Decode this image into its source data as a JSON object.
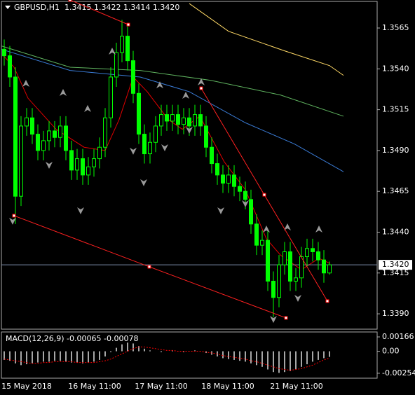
{
  "chart_data": {
    "type": "candlestick",
    "header": "GBPUSD,H1  1.3415 1.3422 1.3414 1.3420",
    "color": "#00ff00",
    "open": [
      1.3552,
      1.3548,
      1.3535,
      1.3462,
      1.3505,
      1.351,
      1.35,
      1.349,
      1.3496,
      1.3502,
      1.3498,
      1.3505,
      1.349,
      1.3478,
      1.3485,
      1.3475,
      1.348,
      1.3485,
      1.3492,
      1.351,
      1.3535,
      1.355,
      1.356,
      1.3545,
      1.3525,
      1.35,
      1.3488,
      1.3495,
      1.3505,
      1.3512,
      1.3508,
      1.3512,
      1.3506,
      1.351,
      1.3505,
      1.3512,
      1.3505,
      1.3492,
      1.3482,
      1.3475,
      1.347,
      1.3475,
      1.3468,
      1.3465,
      1.346,
      1.3445,
      1.3432,
      1.3435,
      1.341,
      1.34,
      1.342,
      1.3428,
      1.341,
      1.3412,
      1.3425,
      1.343,
      1.3428,
      1.3423,
      1.3415
    ],
    "high": [
      1.3558,
      1.3554,
      1.3541,
      1.3511,
      1.3516,
      1.3516,
      1.3506,
      1.3502,
      1.3508,
      1.3508,
      1.3511,
      1.3511,
      1.3496,
      1.3491,
      1.3491,
      1.3486,
      1.3491,
      1.3498,
      1.3516,
      1.3541,
      1.3556,
      1.357,
      1.3566,
      1.3551,
      1.3531,
      1.3506,
      1.3501,
      1.3511,
      1.3518,
      1.3518,
      1.3518,
      1.3518,
      1.3516,
      1.3516,
      1.3518,
      1.3518,
      1.3511,
      1.3498,
      1.3488,
      1.3481,
      1.3481,
      1.3481,
      1.3474,
      1.3471,
      1.3466,
      1.3451,
      1.3441,
      1.3441,
      1.3416,
      1.3426,
      1.3434,
      1.3434,
      1.3418,
      1.3431,
      1.3436,
      1.3436,
      1.3434,
      1.3429,
      1.3422
    ],
    "low": [
      1.3542,
      1.3529,
      1.3445,
      1.3456,
      1.3499,
      1.3494,
      1.3484,
      1.3484,
      1.349,
      1.3492,
      1.3492,
      1.3484,
      1.3472,
      1.3472,
      1.3469,
      1.3469,
      1.3474,
      1.3479,
      1.3486,
      1.3504,
      1.3529,
      1.3544,
      1.3539,
      1.3519,
      1.3494,
      1.3482,
      1.3482,
      1.3489,
      1.3499,
      1.3502,
      1.3502,
      1.35,
      1.35,
      1.3499,
      1.3499,
      1.3499,
      1.3486,
      1.3476,
      1.3469,
      1.3464,
      1.3464,
      1.3462,
      1.3459,
      1.3454,
      1.3439,
      1.3426,
      1.3426,
      1.3404,
      1.3388,
      1.3394,
      1.3414,
      1.3404,
      1.3404,
      1.3406,
      1.3419,
      1.3422,
      1.3417,
      1.3409,
      1.3414
    ],
    "close": [
      1.3548,
      1.3535,
      1.3462,
      1.3505,
      1.351,
      1.35,
      1.349,
      1.3496,
      1.3502,
      1.3498,
      1.3505,
      1.349,
      1.3478,
      1.3485,
      1.3475,
      1.348,
      1.3485,
      1.3492,
      1.351,
      1.3535,
      1.355,
      1.356,
      1.3545,
      1.3525,
      1.35,
      1.3488,
      1.3495,
      1.3505,
      1.3512,
      1.3508,
      1.3512,
      1.3506,
      1.351,
      1.3505,
      1.3512,
      1.3505,
      1.3492,
      1.3482,
      1.3475,
      1.347,
      1.3475,
      1.3468,
      1.3465,
      1.346,
      1.3445,
      1.3432,
      1.3435,
      1.341,
      1.34,
      1.342,
      1.3428,
      1.341,
      1.3412,
      1.3425,
      1.343,
      1.3428,
      1.3423,
      1.3415,
      1.342
    ],
    "ylim": [
      1.33806,
      1.35813
    ],
    "yticks": [
      1.3565,
      {
        "value": 1.354,
        "label": "1.3540"
      },
      1.3515,
      {
        "value": 1.349,
        "label": "1.3490"
      },
      1.3465,
      {
        "value": 1.344,
        "label": "1.3440"
      },
      1.3415,
      {
        "value": 1.339,
        "label": "1.3390"
      }
    ],
    "last_price": {
      "value": 1.342,
      "label": "1.3420"
    },
    "time_labels": [
      "15 May 2018",
      "16 May 11:00",
      "17 May 11:00",
      "18 May 11:00",
      "21 May 11:00"
    ],
    "moving_averages": [
      {
        "color": "#ffd966",
        "bars": [
          33,
          40,
          50,
          58,
          60.5
        ],
        "values": [
          1.358,
          1.3563,
          1.3551,
          1.3542,
          1.3536
        ]
      },
      {
        "color": "#5fb35f",
        "bars": [
          -0.5,
          11.75,
          24.25,
          36.75,
          49.25,
          60.5
        ],
        "values": [
          1.3554,
          1.3541,
          1.3539,
          1.3533,
          1.3524,
          1.3511
        ]
      },
      {
        "color": "#3a7bd5",
        "bars": [
          -0.5,
          11.75,
          24.25,
          33,
          43,
          51.75,
          60.5
        ],
        "values": [
          1.3552,
          1.3539,
          1.3535,
          1.3526,
          1.3507,
          1.3494,
          1.3477
        ]
      },
      {
        "color": "#e00000",
        "bars": [
          -0.125,
          1.75,
          4.25,
          9.25,
          14.25,
          18,
          20.5,
          23,
          25.5,
          29.25,
          31.75,
          34.875,
          39.25,
          43,
          46.75,
          49.25,
          53,
          56.125,
          58
        ],
        "values": [
          1.3548,
          1.3541,
          1.3522,
          1.3503,
          1.3492,
          1.349,
          1.3509,
          1.3535,
          1.3526,
          1.3509,
          1.3503,
          1.3511,
          1.3483,
          1.3466,
          1.3436,
          1.3426,
          1.3417,
          1.3424,
          1.3421
        ]
      }
    ],
    "trend_lines": [
      {
        "bars": [
          1.75,
          25.875,
          50.25
        ],
        "values": [
          1.34501,
          1.34188,
          1.33875
        ]
      },
      {
        "bars": [
          35.125,
          46.375,
          57.625
        ],
        "values": [
          1.35281,
          1.34629,
          1.33978
        ]
      },
      {
        "bars": [
          11.75,
          22.125
        ],
        "values": [
          1.35822,
          1.35671
        ]
      }
    ],
    "fractals_up": {
      "bars": [
        3.875,
        10.5,
        14.875,
        19.25,
        27.75,
        32.375,
        35.125,
        46.75,
        50.5,
        56.125
      ],
      "values": [
        1.35307,
        1.35251,
        1.35153,
        1.35504,
        1.35298,
        1.35234,
        1.35316,
        1.34415,
        1.34428,
        1.34415
      ]
    },
    "fractals_down": {
      "bars": [
        1.5,
        8,
        13.625,
        23,
        24.875,
        28.625,
        33,
        38.625,
        43,
        48,
        52.375
      ],
      "values": [
        1.34471,
        1.34814,
        1.34535,
        1.349,
        1.34707,
        1.34921,
        1.35028,
        1.34535,
        1.34578,
        1.3387,
        1.33999
      ]
    },
    "macd": {
      "label": "MACD(12,26,9) -0.00065 -0.00078",
      "histogram": [
        -0.001,
        -0.0011,
        -0.0014,
        -0.0016,
        -0.0015,
        -0.0014,
        -0.0013,
        -0.0012,
        -0.0012,
        -0.0011,
        -0.0011,
        -0.0012,
        -0.0013,
        -0.0013,
        -0.0014,
        -0.0013,
        -0.0012,
        -0.001,
        -0.0006,
        -0.0001,
        0.0004,
        0.0008,
        0.001,
        0.0009,
        0.0006,
        0.0003,
        0.0001,
        0.0,
        -0.0001,
        0.0,
        0.0001,
        0.0,
        -0.0001,
        0.0,
        0.0001,
        0.0,
        -0.0002,
        -0.0004,
        -0.0006,
        -0.0008,
        -0.0009,
        -0.001,
        -0.0011,
        -0.0012,
        -0.0014,
        -0.0016,
        -0.0018,
        -0.0021,
        -0.0024,
        -0.0025,
        -0.0024,
        -0.0023,
        -0.0021,
        -0.0018,
        -0.0015,
        -0.0012,
        -0.001,
        -0.0008,
        -0.00065
      ],
      "signal": [
        -0.0009,
        -0.001,
        -0.0011,
        -0.0012,
        -0.0013,
        -0.0014,
        -0.0014,
        -0.0013,
        -0.0013,
        -0.0012,
        -0.0012,
        -0.0012,
        -0.0012,
        -0.0013,
        -0.0013,
        -0.0013,
        -0.0013,
        -0.0012,
        -0.0011,
        -0.0009,
        -0.0006,
        -0.0003,
        0.0,
        0.0003,
        0.0005,
        0.0005,
        0.0004,
        0.0003,
        0.0002,
        0.0001,
        0.0001,
        0.0,
        0.0,
        0.0,
        0.0,
        0.0,
        -0.0001,
        -0.0002,
        -0.0003,
        -0.0005,
        -0.0006,
        -0.0007,
        -0.0008,
        -0.0009,
        -0.0011,
        -0.0012,
        -0.0014,
        -0.0016,
        -0.0018,
        -0.002,
        -0.0021,
        -0.0022,
        -0.0021,
        -0.002,
        -0.0018,
        -0.0016,
        -0.0013,
        -0.001,
        -0.00078
      ],
      "ylim": [
        -0.00311,
        0.00223
      ],
      "yticks": [
        0.00166,
        {
          "value": 0,
          "label": "0.00"
        },
        -0.00254
      ]
    }
  }
}
